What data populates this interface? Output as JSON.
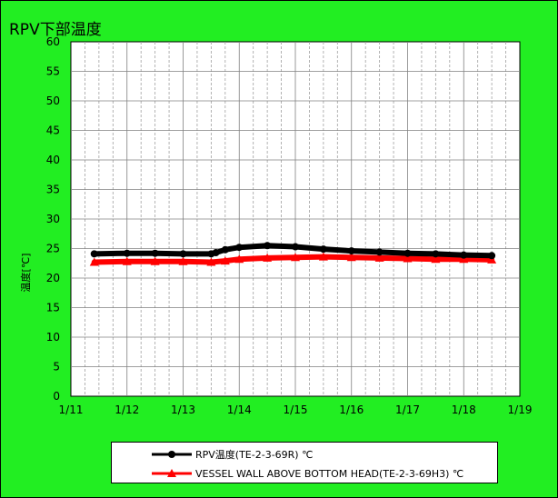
{
  "chart_data": {
    "type": "line",
    "title": "RPV下部温度",
    "xlabel": "",
    "ylabel": "温度[℃]",
    "ylim": [
      0,
      60
    ],
    "yticks": [
      "0",
      "5",
      "10",
      "15",
      "20",
      "25",
      "30",
      "35",
      "40",
      "45",
      "50",
      "55",
      "60"
    ],
    "xlim": [
      "1/11",
      "1/19"
    ],
    "xticks": [
      "1/11",
      "1/12",
      "1/13",
      "1/14",
      "1/15",
      "1/16",
      "1/17",
      "1/18",
      "1/19"
    ],
    "grid": true,
    "legend_position": "bottom",
    "series": [
      {
        "name": "RPV温度(TE-2-3-69R) ℃",
        "color": "#000000",
        "marker": "circle",
        "x": [
          "1/11 10:00",
          "1/12 00:00",
          "1/12 12:00",
          "1/13 00:00",
          "1/13 12:00",
          "1/13 14:00",
          "1/13 18:00",
          "1/14 00:00",
          "1/14 12:00",
          "1/15 00:00",
          "1/15 12:00",
          "1/16 00:00",
          "1/16 12:00",
          "1/17 00:00",
          "1/17 12:00",
          "1/18 00:00",
          "1/18 12:00"
        ],
        "y": [
          24.1,
          24.2,
          24.2,
          24.1,
          24.1,
          24.3,
          24.8,
          25.2,
          25.5,
          25.3,
          24.9,
          24.6,
          24.4,
          24.2,
          24.1,
          23.9,
          23.8
        ]
      },
      {
        "name": "VESSEL WALL ABOVE BOTTOM HEAD(TE-2-3-69H3) ℃",
        "color": "#ff0000",
        "marker": "triangle",
        "x": [
          "1/11 10:00",
          "1/12 00:00",
          "1/12 12:00",
          "1/13 00:00",
          "1/13 12:00",
          "1/13 18:00",
          "1/14 00:00",
          "1/14 12:00",
          "1/15 00:00",
          "1/15 12:00",
          "1/16 00:00",
          "1/16 12:00",
          "1/17 00:00",
          "1/17 12:00",
          "1/18 00:00",
          "1/18 12:00"
        ],
        "y": [
          22.7,
          22.8,
          22.8,
          22.8,
          22.7,
          22.9,
          23.2,
          23.4,
          23.5,
          23.6,
          23.5,
          23.4,
          23.3,
          23.2,
          23.2,
          23.1
        ]
      }
    ]
  }
}
